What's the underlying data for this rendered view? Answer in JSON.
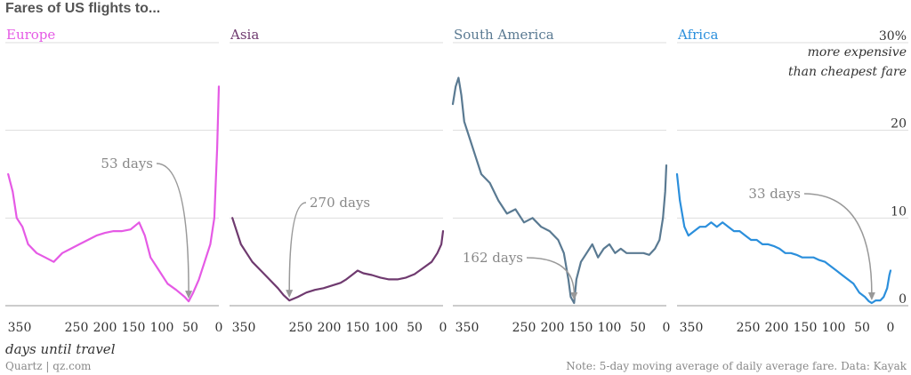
{
  "title": "Fares of US flights to...",
  "source": "Quartz | qz.com",
  "note": "Note: 5-day moving average of daily average fare. Data: Kayak",
  "x_axis_label": "days until travel",
  "y_unit_line1": "30%",
  "y_unit_line2": "more expensive",
  "y_unit_line3": "than cheapest fare",
  "colors": {
    "Europe": "#e55ae5",
    "Asia": "#6f3a6f",
    "South America": "#5a7a92",
    "Africa": "#2b8fdc",
    "grid": "#dddddd",
    "annotation": "#999999"
  },
  "chart_data": {
    "type": "line",
    "title": "Fares of US flights to...",
    "xlabel": "days until travel",
    "ylabel": "more expensive than cheapest fare",
    "xlim": [
      375,
      0
    ],
    "ylim": [
      0,
      30
    ],
    "y_ticks": [
      "0",
      "10",
      "20",
      "30%"
    ],
    "x_ticks": [
      {
        "value": 350,
        "label": "350"
      },
      {
        "value": 250,
        "label": "250"
      },
      {
        "value": 200,
        "label": "200"
      },
      {
        "value": 150,
        "label": "150"
      },
      {
        "value": 100,
        "label": "100"
      },
      {
        "value": 50,
        "label": "50"
      },
      {
        "value": 0,
        "label": "0"
      }
    ],
    "grid": true,
    "panels": [
      {
        "name": "Europe",
        "annotation": {
          "label": "53 days",
          "day": 53,
          "value": 0.5
        },
        "points": [
          [
            370,
            15
          ],
          [
            362,
            13
          ],
          [
            355,
            10
          ],
          [
            345,
            9
          ],
          [
            335,
            7
          ],
          [
            320,
            6
          ],
          [
            305,
            5.5
          ],
          [
            290,
            5
          ],
          [
            275,
            6
          ],
          [
            260,
            6.5
          ],
          [
            245,
            7
          ],
          [
            230,
            7.5
          ],
          [
            215,
            8
          ],
          [
            200,
            8.3
          ],
          [
            185,
            8.5
          ],
          [
            170,
            8.5
          ],
          [
            155,
            8.7
          ],
          [
            140,
            9.5
          ],
          [
            130,
            8
          ],
          [
            120,
            5.5
          ],
          [
            105,
            4
          ],
          [
            90,
            2.5
          ],
          [
            75,
            1.8
          ],
          [
            60,
            1
          ],
          [
            53,
            0.5
          ],
          [
            45,
            1.5
          ],
          [
            35,
            3
          ],
          [
            25,
            5
          ],
          [
            15,
            7
          ],
          [
            8,
            10
          ],
          [
            3,
            18
          ],
          [
            0,
            25
          ]
        ]
      },
      {
        "name": "Asia",
        "annotation": {
          "label": "270 days",
          "day": 270,
          "value": 0.6
        },
        "points": [
          [
            370,
            10
          ],
          [
            365,
            9
          ],
          [
            355,
            7
          ],
          [
            345,
            6
          ],
          [
            335,
            5
          ],
          [
            320,
            4
          ],
          [
            305,
            3
          ],
          [
            290,
            2
          ],
          [
            280,
            1.2
          ],
          [
            270,
            0.6
          ],
          [
            255,
            1
          ],
          [
            240,
            1.5
          ],
          [
            225,
            1.8
          ],
          [
            210,
            2
          ],
          [
            195,
            2.3
          ],
          [
            180,
            2.6
          ],
          [
            170,
            3
          ],
          [
            160,
            3.5
          ],
          [
            150,
            4
          ],
          [
            140,
            3.7
          ],
          [
            125,
            3.5
          ],
          [
            110,
            3.2
          ],
          [
            95,
            3
          ],
          [
            80,
            3
          ],
          [
            65,
            3.2
          ],
          [
            50,
            3.6
          ],
          [
            35,
            4.3
          ],
          [
            20,
            5
          ],
          [
            10,
            6
          ],
          [
            3,
            7
          ],
          [
            0,
            8.5
          ]
        ]
      },
      {
        "name": "South America",
        "annotation": {
          "label": "162 days",
          "day": 162,
          "value": 0.3
        },
        "points": [
          [
            375,
            23
          ],
          [
            370,
            25
          ],
          [
            365,
            26
          ],
          [
            360,
            24
          ],
          [
            355,
            21
          ],
          [
            345,
            19
          ],
          [
            335,
            17
          ],
          [
            325,
            15
          ],
          [
            310,
            14
          ],
          [
            295,
            12
          ],
          [
            280,
            10.5
          ],
          [
            265,
            11
          ],
          [
            250,
            9.5
          ],
          [
            235,
            10
          ],
          [
            220,
            9
          ],
          [
            205,
            8.5
          ],
          [
            190,
            7.5
          ],
          [
            180,
            6
          ],
          [
            172,
            3
          ],
          [
            168,
            1
          ],
          [
            162,
            0.3
          ],
          [
            158,
            3
          ],
          [
            150,
            5
          ],
          [
            140,
            6
          ],
          [
            130,
            7
          ],
          [
            120,
            5.5
          ],
          [
            110,
            6.5
          ],
          [
            100,
            7
          ],
          [
            90,
            6
          ],
          [
            80,
            6.5
          ],
          [
            70,
            6
          ],
          [
            60,
            6
          ],
          [
            50,
            6
          ],
          [
            40,
            6
          ],
          [
            30,
            5.8
          ],
          [
            20,
            6.5
          ],
          [
            12,
            7.5
          ],
          [
            6,
            10
          ],
          [
            2,
            13
          ],
          [
            0,
            16
          ]
        ]
      },
      {
        "name": "Africa",
        "annotation": {
          "label": "33 days",
          "day": 33,
          "value": 0.3
        },
        "points": [
          [
            375,
            15
          ],
          [
            370,
            12
          ],
          [
            362,
            9
          ],
          [
            355,
            8
          ],
          [
            345,
            8.5
          ],
          [
            335,
            9
          ],
          [
            325,
            9
          ],
          [
            315,
            9.5
          ],
          [
            305,
            9
          ],
          [
            295,
            9.5
          ],
          [
            285,
            9
          ],
          [
            275,
            8.5
          ],
          [
            265,
            8.5
          ],
          [
            255,
            8
          ],
          [
            245,
            7.5
          ],
          [
            235,
            7.5
          ],
          [
            225,
            7
          ],
          [
            215,
            7
          ],
          [
            205,
            6.8
          ],
          [
            195,
            6.5
          ],
          [
            185,
            6
          ],
          [
            175,
            6
          ],
          [
            165,
            5.8
          ],
          [
            155,
            5.5
          ],
          [
            145,
            5.5
          ],
          [
            135,
            5.5
          ],
          [
            125,
            5.2
          ],
          [
            115,
            5
          ],
          [
            105,
            4.5
          ],
          [
            95,
            4
          ],
          [
            85,
            3.5
          ],
          [
            75,
            3
          ],
          [
            65,
            2.5
          ],
          [
            55,
            1.5
          ],
          [
            45,
            1
          ],
          [
            38,
            0.5
          ],
          [
            33,
            0.3
          ],
          [
            26,
            0.6
          ],
          [
            18,
            0.6
          ],
          [
            12,
            1
          ],
          [
            6,
            2
          ],
          [
            2,
            3.5
          ],
          [
            0,
            4
          ]
        ]
      }
    ]
  }
}
